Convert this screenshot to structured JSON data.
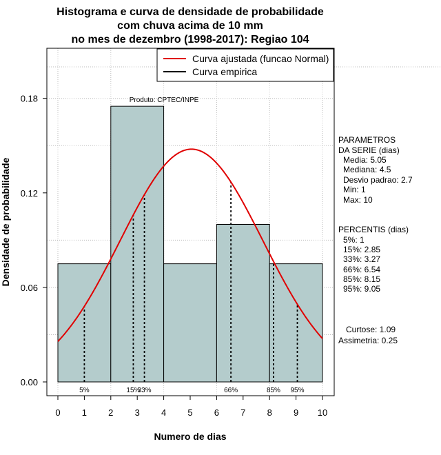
{
  "chart_data": {
    "type": "bar",
    "title_lines": [
      "Histograma e curva de densidade de probabilidade",
      "com chuva acima de 10 mm",
      "no mes de dezembro (1998-2017): Regiao 104"
    ],
    "xlabel": "Numero de dias",
    "ylabel": "Densidade de probabilidade",
    "xlim": [
      0,
      10
    ],
    "ylim": [
      0,
      0.21
    ],
    "xticks": [
      "0",
      "1",
      "2",
      "3",
      "4",
      "5",
      "6",
      "7",
      "8",
      "9",
      "10"
    ],
    "yticks": [
      "0.00",
      "0.06",
      "0.12",
      "0.18"
    ],
    "grid": true,
    "bins": [
      {
        "start": 0,
        "end": 2,
        "density": 0.075
      },
      {
        "start": 2,
        "end": 4,
        "density": 0.175
      },
      {
        "start": 4,
        "end": 6,
        "density": 0.075
      },
      {
        "start": 6,
        "end": 8,
        "density": 0.1
      },
      {
        "start": 8,
        "end": 10,
        "density": 0.075
      }
    ],
    "normal_curve": {
      "mean": 5.05,
      "sd": 2.7,
      "x_from": 0,
      "x_to": 10
    },
    "percentiles": [
      {
        "label": "5%",
        "x": 1
      },
      {
        "label": "15%",
        "x": 2.85
      },
      {
        "label": "33%",
        "x": 3.27
      },
      {
        "label": "66%",
        "x": 6.54
      },
      {
        "label": "85%",
        "x": 8.15
      },
      {
        "label": "95%",
        "x": 9.05
      }
    ],
    "legend": {
      "position": "top-right",
      "entries": [
        {
          "label": "Curva ajustada (funcao Normal)",
          "color": "#e00000"
        },
        {
          "label": "Curva empirica",
          "color": "#000000"
        }
      ]
    },
    "product_label": "Produto: CPTEC/INPE",
    "colors": {
      "bar_fill": "#b4cccc",
      "curve": "#e00000",
      "grid": "#bdbdbd"
    }
  },
  "side_panel": {
    "parametros_title": [
      "PARAMETROS",
      "DA SERIE (dias)"
    ],
    "parametros": [
      "Media: 5.05",
      "Mediana: 4.5",
      "Desvio padrao: 2.7",
      "Min: 1",
      "Max: 10"
    ],
    "percentis_title": "PERCENTIS (dias)",
    "percentis": [
      "5%: 1",
      "15%: 2.85",
      "33%: 3.27",
      "66%: 6.54",
      "85%: 8.15",
      "95%: 9.05"
    ],
    "curtose": "Curtose: 1.09",
    "assimetria": "Assimetria: 0.25"
  }
}
